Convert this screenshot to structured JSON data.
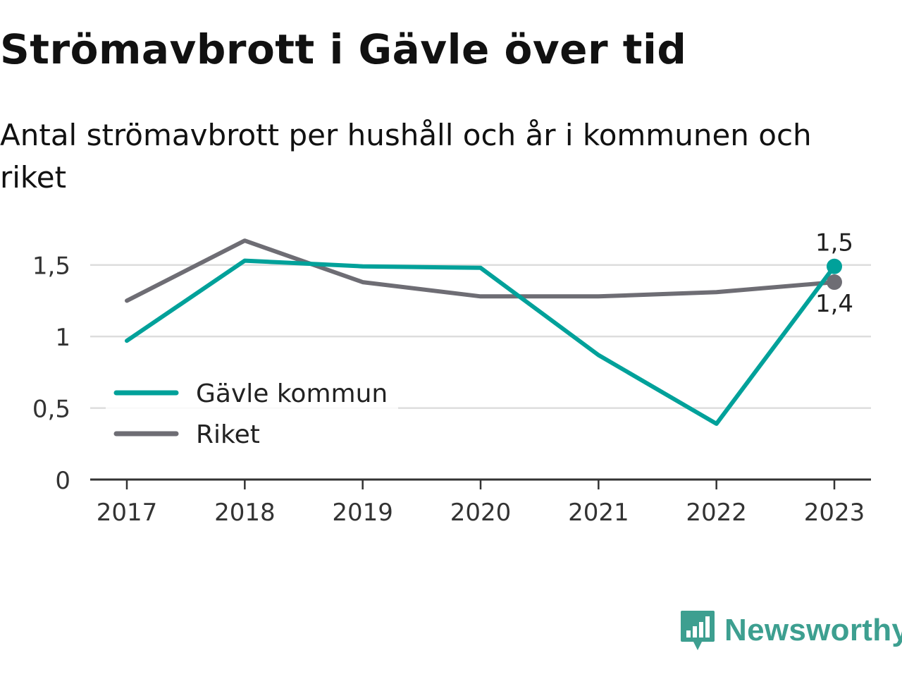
{
  "header": {
    "title": "Strömavbrott i Gävle över tid",
    "subtitle": "Antal strömavbrott per hushåll och år i kommunen och riket"
  },
  "chart_data": {
    "type": "line",
    "x": [
      "2017",
      "2018",
      "2019",
      "2020",
      "2021",
      "2022",
      "2023"
    ],
    "series": [
      {
        "name": "Gävle kommun",
        "color": "#00a19a",
        "values": [
          0.97,
          1.53,
          1.49,
          1.48,
          0.87,
          0.39,
          1.49
        ],
        "end_label": "1,5"
      },
      {
        "name": "Riket",
        "color": "#6e6d74",
        "values": [
          1.25,
          1.67,
          1.38,
          1.28,
          1.28,
          1.31,
          1.38
        ],
        "end_label": "1,4"
      }
    ],
    "yticks": [
      0,
      0.5,
      1,
      1.5
    ],
    "ytick_labels": [
      "0",
      "0,5",
      "1",
      "1,5"
    ],
    "ylim": [
      0,
      1.75
    ],
    "grid": true,
    "legend_position": "bottom-left",
    "gridline_color": "#dddddd",
    "axis_color": "#333333"
  },
  "branding": {
    "logo_text": "Newsworthy",
    "logo_icon": "bar-chart-speech-bubble-icon",
    "color": "#3d9f90"
  }
}
